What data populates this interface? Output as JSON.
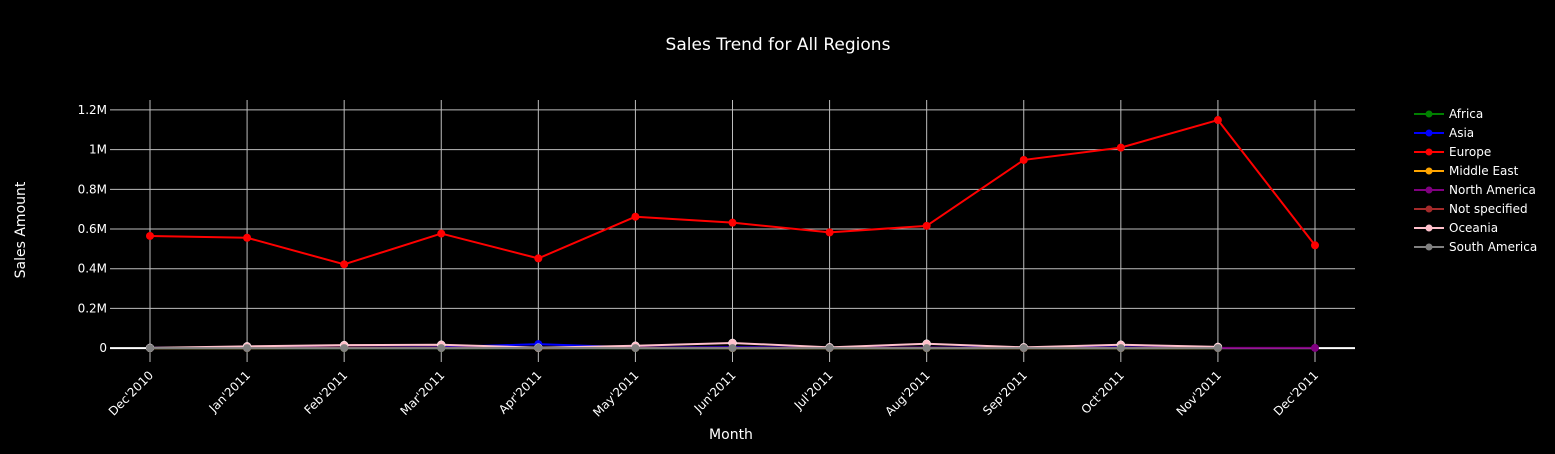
{
  "chart_data": {
    "type": "line",
    "title": "Sales Trend for All Regions",
    "xlabel": "Month",
    "ylabel": "Sales Amount",
    "categories": [
      "Dec'2010",
      "Jan'2011",
      "Feb'2011",
      "Mar'2011",
      "Apr'2011",
      "May'2011",
      "Jun'2011",
      "Jul'2011",
      "Aug'2011",
      "Sep'2011",
      "Oct'2011",
      "Nov'2011",
      "Dec'2011"
    ],
    "y_ticks": [
      0,
      200000,
      400000,
      600000,
      800000,
      1000000,
      1200000
    ],
    "y_tick_labels": [
      "0",
      "0.2M",
      "0.4M",
      "0.6M",
      "0.8M",
      "1M",
      "1.2M"
    ],
    "ylim": [
      -70000,
      1250000
    ],
    "grid": true,
    "legend_position": "right",
    "series": [
      {
        "name": "Africa",
        "color": "#008000",
        "values": [
          0,
          0,
          0,
          0,
          0,
          0,
          0,
          0,
          0,
          0,
          0,
          0,
          null
        ]
      },
      {
        "name": "Asia",
        "color": "#0000ff",
        "values": [
          1000,
          2000,
          3000,
          5000,
          20000,
          3000,
          5000,
          2000,
          3000,
          2000,
          4000,
          2000,
          null
        ]
      },
      {
        "name": "Europe",
        "color": "#ff0000",
        "values": [
          565000,
          556000,
          422000,
          577000,
          452000,
          662000,
          632000,
          583000,
          616000,
          948000,
          1010000,
          1149000,
          518000
        ]
      },
      {
        "name": "Middle East",
        "color": "#ffa500",
        "values": [
          0,
          0,
          1000,
          1000,
          0,
          1000,
          0,
          0,
          0,
          0,
          0,
          0,
          null
        ]
      },
      {
        "name": "North America",
        "color": "#800080",
        "values": [
          1000,
          1000,
          2000,
          2000,
          1000,
          2000,
          2000,
          1000,
          2000,
          1000,
          2000,
          1000,
          1000
        ]
      },
      {
        "name": "Not specified",
        "color": "#a52a2a",
        "values": [
          0,
          1000,
          2000,
          2000,
          0,
          1000,
          1000,
          1000,
          1000,
          0,
          1000,
          1000,
          null
        ]
      },
      {
        "name": "Oceania",
        "color": "#ffc0cb",
        "values": [
          1000,
          9000,
          15000,
          17000,
          2000,
          12000,
          26000,
          4000,
          22000,
          4000,
          17000,
          6000,
          null
        ]
      },
      {
        "name": "South America",
        "color": "#808080",
        "values": [
          0,
          0,
          0,
          0,
          1000,
          0,
          0,
          0,
          0,
          0,
          0,
          0,
          null
        ]
      }
    ]
  }
}
